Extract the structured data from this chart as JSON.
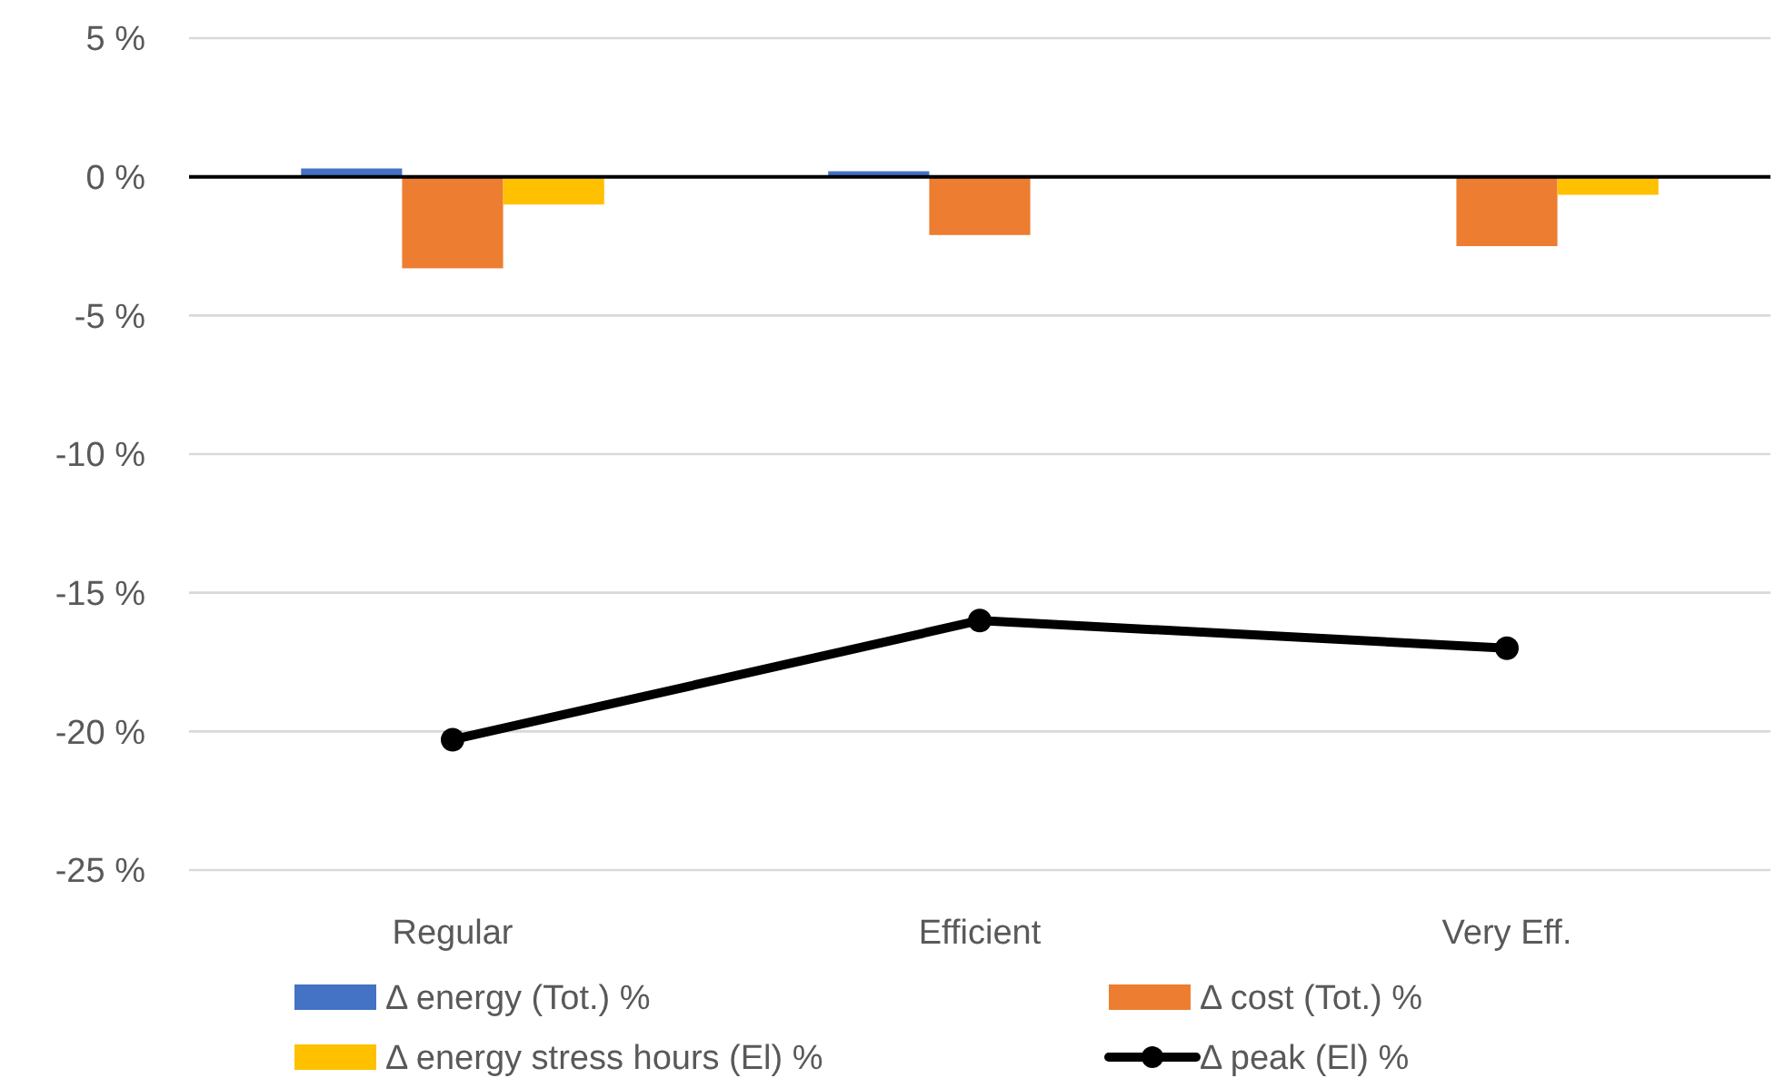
{
  "chart_data": {
    "type": "bar",
    "categories": [
      "Regular",
      "Efficient",
      "Very Eff."
    ],
    "series": [
      {
        "name": "Δ energy (Tot.) %",
        "color": "#4472c4",
        "values": [
          0.3,
          0.2,
          null
        ]
      },
      {
        "name": "Δ cost (Tot.) %",
        "color": "#ed7d31",
        "values": [
          -3.3,
          -2.1,
          -2.5
        ]
      },
      {
        "name": "Δ energy stress hours (El) %",
        "color": "#ffc000",
        "values": [
          -1.0,
          null,
          -0.65
        ]
      },
      {
        "name": "Δ peak (El) %",
        "type": "line",
        "color": "#000000",
        "values": [
          -20.3,
          -16.0,
          -17.0
        ]
      }
    ],
    "ylim": [
      -25,
      5
    ],
    "yticks": [
      {
        "value": 5,
        "label": "5 %"
      },
      {
        "value": 0,
        "label": "0 %"
      },
      {
        "value": -5,
        "label": "-5 %"
      },
      {
        "value": -10,
        "label": "-10 %"
      },
      {
        "value": -15,
        "label": "-15 %"
      },
      {
        "value": -20,
        "label": "-20 %"
      },
      {
        "value": -25,
        "label": "-25 %"
      }
    ],
    "grid": "y",
    "legend": "bottom",
    "marker": "circle",
    "line_style": "solid"
  }
}
